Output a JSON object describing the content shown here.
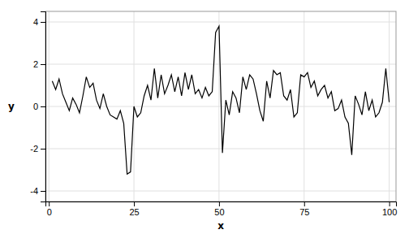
{
  "chart_data": {
    "type": "line",
    "x": [
      1,
      2,
      3,
      4,
      5,
      6,
      7,
      8,
      9,
      10,
      11,
      12,
      13,
      14,
      15,
      16,
      17,
      18,
      19,
      20,
      21,
      22,
      23,
      24,
      25,
      26,
      27,
      28,
      29,
      30,
      31,
      32,
      33,
      34,
      35,
      36,
      37,
      38,
      39,
      40,
      41,
      42,
      43,
      44,
      45,
      46,
      47,
      48,
      49,
      50,
      51,
      52,
      53,
      54,
      55,
      56,
      57,
      58,
      59,
      60,
      61,
      62,
      63,
      64,
      65,
      66,
      67,
      68,
      69,
      70,
      71,
      72,
      73,
      74,
      75,
      76,
      77,
      78,
      79,
      80,
      81,
      82,
      83,
      84,
      85,
      86,
      87,
      88,
      89,
      90,
      91,
      92,
      93,
      94,
      95,
      96,
      97,
      98,
      99,
      100
    ],
    "values": [
      1.2,
      0.8,
      1.3,
      0.6,
      0.2,
      -0.2,
      0.4,
      0.1,
      -0.3,
      0.5,
      1.4,
      0.9,
      1.1,
      0.3,
      -0.1,
      0.6,
      0.0,
      -0.4,
      -0.5,
      -0.6,
      -0.2,
      -0.8,
      -3.2,
      -3.1,
      0.0,
      -0.5,
      -0.3,
      0.5,
      1.0,
      0.3,
      1.8,
      0.4,
      1.5,
      0.6,
      1.0,
      1.5,
      0.7,
      1.4,
      0.5,
      1.6,
      0.8,
      1.5,
      0.6,
      0.8,
      0.4,
      0.9,
      0.5,
      0.7,
      3.5,
      3.8,
      -2.2,
      0.3,
      -0.4,
      0.7,
      0.4,
      -0.3,
      1.4,
      0.8,
      1.5,
      1.3,
      0.6,
      -0.2,
      -0.7,
      1.2,
      0.4,
      1.7,
      1.5,
      1.6,
      0.5,
      0.3,
      0.8,
      -0.5,
      -0.3,
      1.5,
      1.4,
      1.6,
      0.9,
      1.2,
      0.5,
      0.8,
      1.0,
      0.4,
      0.7,
      -0.2,
      -0.1,
      0.3,
      -0.5,
      -0.8,
      -2.3,
      0.5,
      0.1,
      -0.4,
      0.7,
      -0.2,
      0.3,
      -0.5,
      -0.3,
      0.2,
      1.8,
      0.2
    ],
    "color": "black",
    "xlabel": "x",
    "ylabel": "y",
    "xlim": [
      -1,
      102
    ],
    "ylim": [
      -4.5,
      4.5
    ],
    "xticks": [
      0,
      25,
      50,
      75,
      100
    ],
    "yticks": [
      -4,
      -2,
      0,
      2,
      4
    ],
    "grid": true
  }
}
